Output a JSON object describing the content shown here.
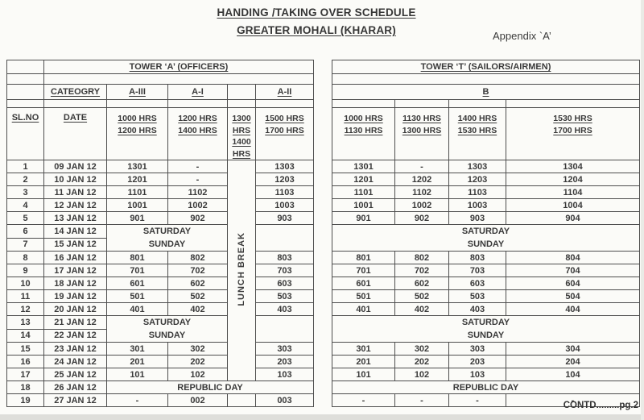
{
  "document": {
    "title_line1": "HANDING /TAKING OVER SCHEDULE",
    "title_line2": "GREATER MOHALI (KHARAR)",
    "appendix_label": "Appendix `A’",
    "footer_note": "CONTD.........pg.2"
  },
  "schedule": {
    "left_tower": {
      "title": "TOWER ‘A’  (OFFICERS)",
      "category_header": "CATEOGRY",
      "slno_header": "SL.NO",
      "date_header": "DATE",
      "group_headers": [
        "A-III",
        "A-I",
        "A-II"
      ],
      "lunch_break_label": "LUNCH BREAK",
      "time_slots": [
        [
          "1000 HRS",
          "1200 HRS"
        ],
        [
          "1200 HRS",
          "1400 HRS"
        ],
        [
          "1300",
          "HRS",
          "1400",
          "HRS"
        ],
        [
          "1500 HRS",
          "1700 HRS"
        ]
      ]
    },
    "right_tower": {
      "title": "TOWER ‘T’  (SAILORS/AIRMEN)",
      "category_header": "B",
      "time_slots": [
        [
          "1000 HRS",
          "1130 HRS"
        ],
        [
          "1130 HRS",
          "1300 HRS"
        ],
        [
          "1400 HRS",
          "1530 HRS"
        ],
        [
          "1530 HRS",
          "1700 HRS"
        ]
      ]
    },
    "weekend_labels": [
      "SATURDAY",
      "SUNDAY"
    ],
    "rows": [
      {
        "type": "normal",
        "slno": "1",
        "date": "09 JAN 12",
        "left": [
          "1301",
          "-",
          "1303"
        ],
        "right": [
          "1301",
          "-",
          "1303",
          "1304"
        ]
      },
      {
        "type": "normal",
        "slno": "2",
        "date": "10 JAN 12",
        "left": [
          "1201",
          "-",
          "1203"
        ],
        "right": [
          "1201",
          "1202",
          "1203",
          "1204"
        ]
      },
      {
        "type": "normal",
        "slno": "3",
        "date": "11 JAN 12",
        "left": [
          "1101",
          "1102",
          "1103"
        ],
        "right": [
          "1101",
          "1102",
          "1103",
          "1104"
        ]
      },
      {
        "type": "normal",
        "slno": "4",
        "date": "12 JAN 12",
        "left": [
          "1001",
          "1002",
          "1003"
        ],
        "right": [
          "1001",
          "1002",
          "1003",
          "1004"
        ]
      },
      {
        "type": "normal",
        "slno": "5",
        "date": "13 JAN 12",
        "left": [
          "901",
          "902",
          "903"
        ],
        "right": [
          "901",
          "902",
          "903",
          "904"
        ]
      },
      {
        "type": "weekend_first",
        "slno": "6",
        "date": "14 JAN 12"
      },
      {
        "type": "weekend_second",
        "slno": "7",
        "date": "15 JAN 12"
      },
      {
        "type": "normal",
        "slno": "8",
        "date": "16 JAN 12",
        "left": [
          "801",
          "802",
          "803"
        ],
        "right": [
          "801",
          "802",
          "803",
          "804"
        ]
      },
      {
        "type": "normal",
        "slno": "9",
        "date": "17 JAN 12",
        "left": [
          "701",
          "702",
          "703"
        ],
        "right": [
          "701",
          "702",
          "703",
          "704"
        ]
      },
      {
        "type": "normal",
        "slno": "10",
        "date": "18 JAN 12",
        "left": [
          "601",
          "602",
          "603"
        ],
        "right": [
          "601",
          "602",
          "603",
          "604"
        ]
      },
      {
        "type": "normal",
        "slno": "11",
        "date": "19 JAN 12",
        "left": [
          "501",
          "502",
          "503"
        ],
        "right": [
          "501",
          "502",
          "503",
          "504"
        ]
      },
      {
        "type": "normal",
        "slno": "12",
        "date": "20 JAN 12",
        "left": [
          "401",
          "402",
          "403"
        ],
        "right": [
          "401",
          "402",
          "403",
          "404"
        ]
      },
      {
        "type": "weekend_first",
        "slno": "13",
        "date": "21 JAN 12"
      },
      {
        "type": "weekend_second",
        "slno": "14",
        "date": "22 JAN 12"
      },
      {
        "type": "normal",
        "slno": "15",
        "date": "23 JAN 12",
        "left": [
          "301",
          "302",
          "303"
        ],
        "right": [
          "301",
          "302",
          "303",
          "304"
        ]
      },
      {
        "type": "normal",
        "slno": "16",
        "date": "24 JAN 12",
        "left": [
          "201",
          "202",
          "203"
        ],
        "right": [
          "201",
          "202",
          "203",
          "204"
        ]
      },
      {
        "type": "normal",
        "slno": "17",
        "date": "25 JAN 12",
        "left": [
          "101",
          "102",
          "103"
        ],
        "right": [
          "101",
          "102",
          "103",
          "104"
        ]
      },
      {
        "type": "holiday",
        "slno": "18",
        "date": "26 JAN 12",
        "label": "REPUBLIC DAY"
      },
      {
        "type": "normal",
        "slno": "19",
        "date": "27 JAN 12",
        "own_lunch": true,
        "left": [
          "-",
          "002",
          "003"
        ],
        "right": [
          "-",
          "-",
          "-",
          "-"
        ]
      }
    ]
  }
}
